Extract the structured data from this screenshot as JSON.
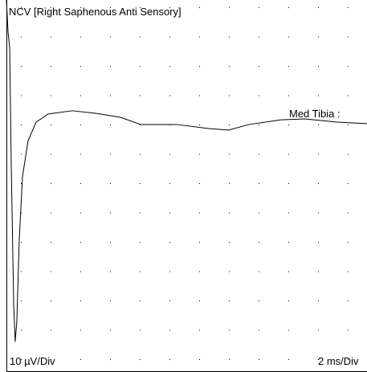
{
  "chart_data": {
    "type": "line",
    "title": "NCV [Right Saphenous Anti Sensory]",
    "x_label": "2 ms/Div",
    "y_label": "10 µV/Div",
    "annotation": "Med Tibia :",
    "color": "#000000",
    "xlim": [
      0,
      24.27
    ],
    "ylim": [
      -86,
      41
    ],
    "x": [
      0,
      0.11,
      0.22,
      0.32,
      0.49,
      0.59,
      0.7,
      0.86,
      1.08,
      1.46,
      2.0,
      2.81,
      4.43,
      6.05,
      7.68,
      9.03,
      11.46,
      13.62,
      14.97,
      16.32,
      18.49,
      20.11,
      22.27,
      24.27
    ],
    "values": [
      41,
      30.0,
      24.5,
      -13.9,
      -63.2,
      -75.6,
      -68.7,
      -41.3,
      -19.3,
      -7.0,
      -0.7,
      2.1,
      3.2,
      2.3,
      0.96,
      -1.5,
      -1.5,
      -2.9,
      -3.4,
      -1.5,
      0.1,
      0.4,
      -0.7,
      -1.2
    ]
  }
}
